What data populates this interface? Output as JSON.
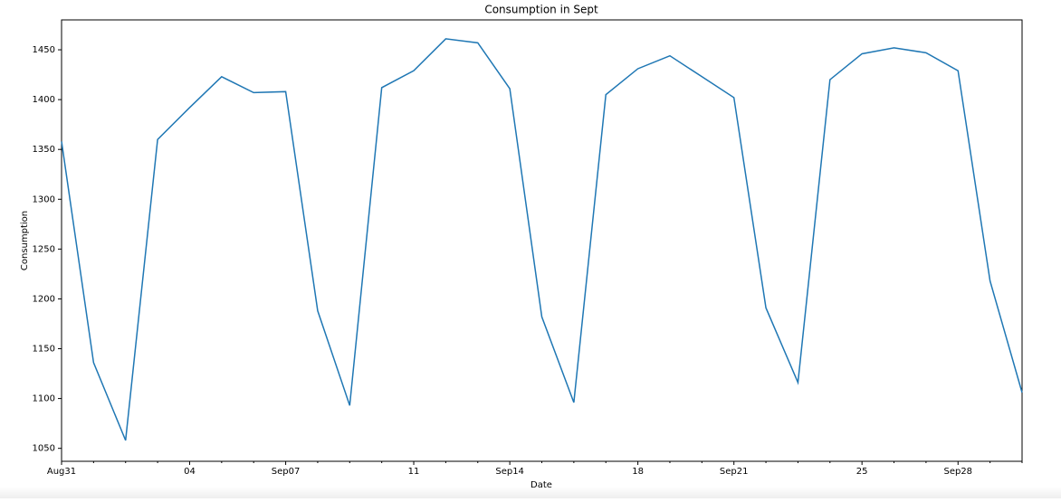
{
  "chart_data": {
    "type": "line",
    "title": "Consumption in Sept",
    "x_label": "Date",
    "y_label": "Consumption",
    "categories": [
      "Aug31",
      null,
      null,
      null,
      "04",
      null,
      null,
      "Sep07",
      null,
      null,
      null,
      "11",
      null,
      null,
      "Sep14",
      null,
      null,
      null,
      "18",
      null,
      null,
      "Sep21",
      null,
      null,
      null,
      "25",
      null,
      null,
      "Sep28",
      null,
      null
    ],
    "series": [
      {
        "name": "Consumption",
        "color": "#1f77b4",
        "values": [
          1358,
          1136,
          1058,
          1360,
          1392,
          1423,
          1407,
          1408,
          1188,
          1093,
          1412,
          1429,
          1461,
          1457,
          1411,
          1182,
          1096,
          1405,
          1431,
          1444,
          1423,
          1402,
          1191,
          1116,
          1420,
          1446,
          1452,
          1447,
          1429,
          1218,
          1106
        ]
      }
    ],
    "ylim": [
      1037,
      1480
    ],
    "yticks": [
      1050,
      1100,
      1150,
      1200,
      1250,
      1300,
      1350,
      1400,
      1450
    ],
    "grid": false
  }
}
